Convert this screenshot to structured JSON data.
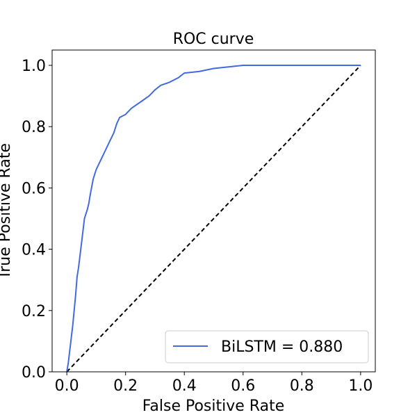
{
  "chart_data": {
    "type": "line",
    "title": "ROC curve",
    "xlabel": "False Positive Rate",
    "ylabel": "True Positive Rate",
    "xlim": [
      0.0,
      1.0
    ],
    "ylim": [
      0.0,
      1.0
    ],
    "x_ticks": [
      "0.0",
      "0.2",
      "0.4",
      "0.6",
      "0.8",
      "1.0"
    ],
    "y_ticks": [
      "0.0",
      "0.2",
      "0.4",
      "0.6",
      "0.8",
      "1.0"
    ],
    "grid": false,
    "legend_position": "lower-right",
    "series": [
      {
        "name": "BiLSTM = 0.880",
        "color": "#4169E1",
        "style": "solid",
        "x": [
          0.0,
          0.005,
          0.01,
          0.02,
          0.03,
          0.035,
          0.04,
          0.05,
          0.06,
          0.07,
          0.075,
          0.08,
          0.09,
          0.1,
          0.11,
          0.12,
          0.13,
          0.14,
          0.15,
          0.16,
          0.17,
          0.18,
          0.2,
          0.22,
          0.25,
          0.28,
          0.3,
          0.32,
          0.35,
          0.38,
          0.4,
          0.45,
          0.5,
          0.55,
          0.6,
          0.65,
          0.7,
          0.8,
          0.9,
          1.0
        ],
        "y": [
          0.0,
          0.03,
          0.07,
          0.15,
          0.25,
          0.31,
          0.34,
          0.42,
          0.5,
          0.53,
          0.55,
          0.58,
          0.63,
          0.66,
          0.68,
          0.7,
          0.72,
          0.74,
          0.76,
          0.78,
          0.81,
          0.83,
          0.84,
          0.86,
          0.88,
          0.9,
          0.92,
          0.935,
          0.945,
          0.96,
          0.975,
          0.98,
          0.99,
          0.995,
          1.0,
          1.0,
          1.0,
          1.0,
          1.0,
          1.0
        ]
      }
    ],
    "reference_line": {
      "x": [
        0.0,
        1.0
      ],
      "y": [
        0.0,
        1.0
      ],
      "color": "#000000",
      "style": "dashed"
    }
  }
}
